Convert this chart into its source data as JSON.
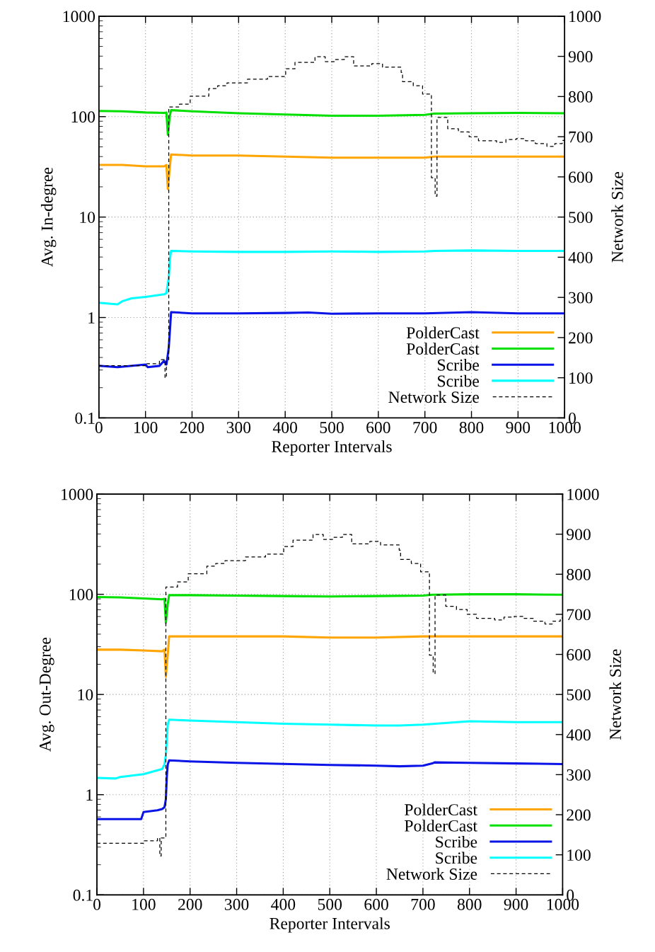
{
  "chart_data": [
    {
      "type": "line",
      "xlabel": "Reporter Intervals",
      "ylabel": "Avg. In-degree",
      "y2label": "Network Size",
      "log": "y",
      "grid": true,
      "legend": "bottom right",
      "xlim": [
        0,
        1000
      ],
      "xticks": [
        0,
        100,
        200,
        300,
        400,
        500,
        600,
        700,
        800,
        900,
        1000
      ],
      "ylim": [
        0.1,
        1000
      ],
      "yticks": [
        0.1,
        1,
        10,
        100,
        1000
      ],
      "y2lim": [
        0,
        1000
      ],
      "y2ticks": [
        0,
        100,
        200,
        300,
        400,
        500,
        600,
        700,
        800,
        900,
        1000
      ],
      "series": [
        {
          "name": "PolderCast",
          "color": "#ffa500",
          "x": [
            0,
            50,
            100,
            140,
            145,
            148,
            152,
            155,
            200,
            300,
            400,
            500,
            600,
            700,
            720,
            800,
            900,
            1000
          ],
          "values": [
            33,
            33,
            32,
            32,
            33,
            19,
            30,
            42,
            41,
            41,
            40,
            39,
            39,
            39,
            40,
            40,
            40,
            40
          ]
        },
        {
          "name": "PolderCast",
          "color": "#00e000",
          "x": [
            0,
            50,
            100,
            140,
            145,
            148,
            152,
            155,
            200,
            300,
            400,
            500,
            600,
            700,
            720,
            800,
            900,
            1000
          ],
          "values": [
            114,
            113,
            110,
            109,
            110,
            66,
            100,
            116,
            113,
            108,
            105,
            102,
            102,
            104,
            107,
            108,
            109,
            108
          ]
        },
        {
          "name": "Scribe",
          "color": "#0a14e6",
          "x": [
            0,
            40,
            100,
            105,
            130,
            140,
            145,
            150,
            153,
            155,
            200,
            300,
            400,
            450,
            500,
            600,
            700,
            800,
            900,
            1000
          ],
          "values": [
            0.33,
            0.32,
            0.34,
            0.32,
            0.33,
            0.37,
            0.34,
            0.5,
            0.8,
            1.13,
            1.1,
            1.1,
            1.11,
            1.12,
            1.09,
            1.1,
            1.1,
            1.13,
            1.1,
            1.1
          ]
        },
        {
          "name": "Scribe",
          "color": "#00ffff",
          "x": [
            0,
            40,
            50,
            70,
            100,
            140,
            145,
            150,
            153,
            155,
            200,
            300,
            400,
            500,
            600,
            700,
            720,
            800,
            900,
            1000
          ],
          "values": [
            1.4,
            1.35,
            1.45,
            1.55,
            1.6,
            1.7,
            1.75,
            2.5,
            4,
            4.6,
            4.55,
            4.5,
            4.5,
            4.55,
            4.5,
            4.55,
            4.6,
            4.65,
            4.6,
            4.6
          ]
        },
        {
          "name": "Network Size",
          "type": "step",
          "axis": "y2",
          "color": "#000000",
          "line_style": "dashed",
          "x": [
            0,
            100,
            130,
            140,
            142,
            145,
            150,
            173,
            196,
            236,
            255,
            275,
            319,
            362,
            401,
            421,
            464,
            486,
            506,
            527,
            547,
            586,
            609,
            649,
            652,
            675,
            695,
            714,
            722,
            726,
            749,
            772,
            795,
            815,
            854,
            874,
            896,
            916,
            937,
            962,
            979,
            995,
            1000
          ],
          "values": [
            130,
            135,
            145,
            145,
            100,
            145,
            774,
            781,
            801,
            820,
            827,
            834,
            843,
            850,
            869,
            885,
            899,
            887,
            892,
            899,
            876,
            882,
            873,
            860,
            837,
            827,
            806,
            598,
            552,
            748,
            720,
            712,
            700,
            690,
            686,
            693,
            695,
            690,
            683,
            676,
            683,
            691,
            691
          ]
        }
      ]
    },
    {
      "type": "line",
      "xlabel": "Reporter Intervals",
      "ylabel": "Avg. Out-Degree",
      "y2label": "Network Size",
      "log": "y",
      "grid": true,
      "legend": "bottom right",
      "xlim": [
        0,
        1000
      ],
      "xticks": [
        0,
        100,
        200,
        300,
        400,
        500,
        600,
        700,
        800,
        900,
        1000
      ],
      "ylim": [
        0.1,
        1000
      ],
      "yticks": [
        0.1,
        1,
        10,
        100,
        1000
      ],
      "y2lim": [
        0,
        1000
      ],
      "y2ticks": [
        0,
        100,
        200,
        300,
        400,
        500,
        600,
        700,
        800,
        900,
        1000
      ],
      "series": [
        {
          "name": "PolderCast",
          "color": "#ffa500",
          "x": [
            0,
            50,
            100,
            140,
            145,
            148,
            152,
            155,
            200,
            300,
            400,
            500,
            600,
            700,
            720,
            800,
            900,
            1000
          ],
          "values": [
            28,
            28,
            27.5,
            27,
            28,
            15,
            25,
            38,
            38,
            38,
            38,
            37,
            37,
            38,
            38,
            38,
            38,
            38
          ]
        },
        {
          "name": "PolderCast",
          "color": "#00e000",
          "x": [
            0,
            50,
            100,
            140,
            145,
            148,
            152,
            155,
            200,
            300,
            400,
            500,
            600,
            700,
            720,
            800,
            900,
            1000
          ],
          "values": [
            94,
            93,
            91,
            89,
            90,
            52,
            80,
            98,
            98,
            97,
            96,
            95,
            96,
            97,
            99,
            100,
            100,
            99
          ]
        },
        {
          "name": "Scribe",
          "color": "#0a14e6",
          "x": [
            0,
            95,
            100,
            130,
            140,
            145,
            148,
            150,
            152,
            155,
            200,
            300,
            400,
            500,
            600,
            650,
            700,
            720,
            725,
            800,
            900,
            1000
          ],
          "values": [
            0.57,
            0.57,
            0.67,
            0.7,
            0.72,
            0.75,
            0.9,
            1.5,
            2.0,
            2.2,
            2.15,
            2.08,
            2.03,
            1.98,
            1.95,
            1.92,
            1.95,
            2.05,
            2.1,
            2.08,
            2.05,
            2.02
          ]
        },
        {
          "name": "Scribe",
          "color": "#00ffff",
          "x": [
            0,
            40,
            50,
            100,
            130,
            140,
            145,
            148,
            150,
            152,
            155,
            200,
            300,
            400,
            500,
            600,
            650,
            700,
            800,
            900,
            1000
          ],
          "values": [
            1.47,
            1.45,
            1.5,
            1.6,
            1.75,
            1.8,
            2.0,
            2.5,
            3.5,
            5,
            5.6,
            5.5,
            5.3,
            5.1,
            5.0,
            4.9,
            4.9,
            5.0,
            5.4,
            5.3,
            5.3
          ]
        },
        {
          "name": "Network Size",
          "type": "step",
          "axis": "y2",
          "color": "#000000",
          "line_style": "dashed",
          "x": [
            0,
            100,
            130,
            135,
            138,
            140,
            148,
            173,
            196,
            236,
            255,
            275,
            319,
            362,
            401,
            421,
            464,
            486,
            506,
            527,
            547,
            586,
            609,
            649,
            652,
            675,
            695,
            714,
            722,
            726,
            749,
            772,
            795,
            815,
            854,
            874,
            896,
            916,
            937,
            962,
            979,
            995,
            1000
          ],
          "values": [
            129,
            135,
            142,
            97,
            142,
            142,
            768,
            781,
            801,
            820,
            827,
            834,
            843,
            850,
            869,
            885,
            899,
            887,
            892,
            899,
            876,
            882,
            873,
            860,
            837,
            827,
            806,
            598,
            552,
            748,
            720,
            712,
            700,
            690,
            686,
            693,
            695,
            690,
            683,
            676,
            683,
            691,
            691
          ]
        }
      ]
    }
  ]
}
